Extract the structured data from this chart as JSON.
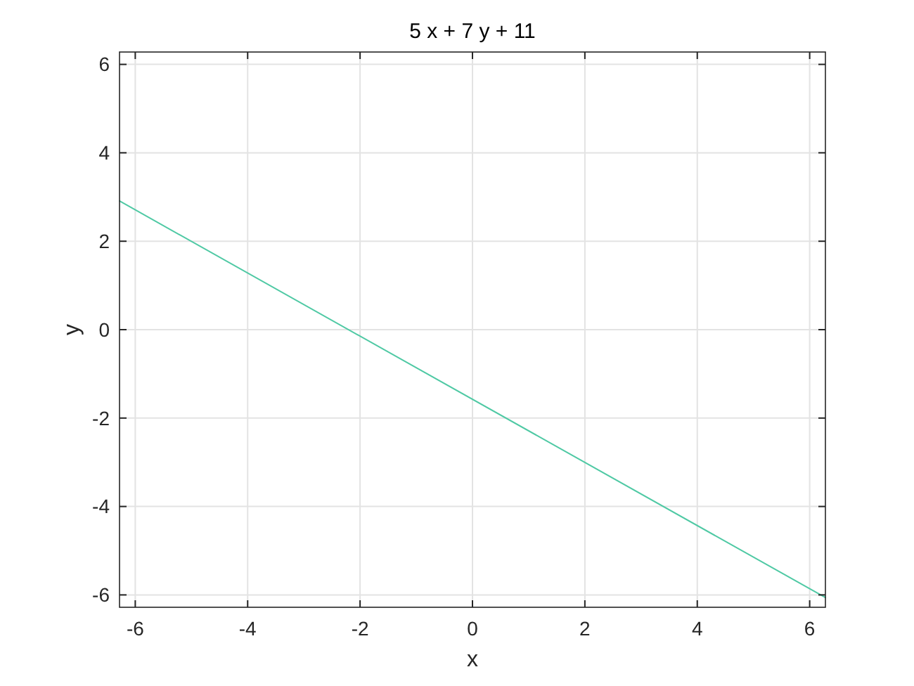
{
  "chart_data": {
    "type": "line",
    "title": "5 x + 7 y + 11",
    "xlabel": "x",
    "ylabel": "y",
    "x": [
      -6.28,
      6.28
    ],
    "series": [
      {
        "color": "#4fc9a4",
        "values": [
          2.91,
          -6.06
        ]
      }
    ],
    "xlim": [
      -6.28,
      6.28
    ],
    "ylim": [
      -6.28,
      6.28
    ],
    "xticks": [
      -6,
      -4,
      -2,
      0,
      2,
      4,
      6
    ],
    "yticks": [
      -6,
      -4,
      -2,
      0,
      2,
      4,
      6
    ],
    "grid": true,
    "marker": "none",
    "line_style": "solid"
  }
}
